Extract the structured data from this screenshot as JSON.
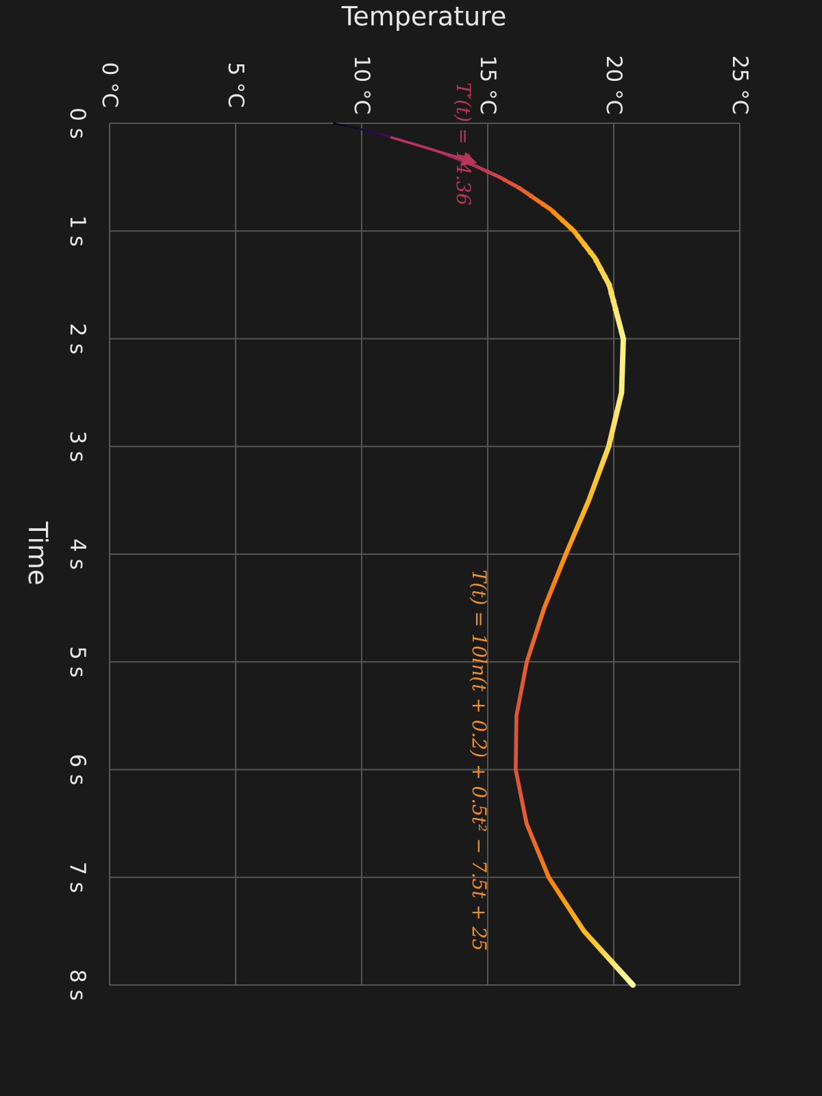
{
  "chart_data": {
    "type": "line",
    "orientation": "rotated 90 degrees clockwise",
    "x_axis": {
      "label": "Time",
      "range": [
        0,
        8
      ],
      "unit": "s",
      "ticks": [
        "0 s",
        "1 s",
        "2 s",
        "3 s",
        "4 s",
        "5 s",
        "6 s",
        "7 s",
        "8 s"
      ]
    },
    "y_axis": {
      "label": "Temperature",
      "range": [
        0,
        25
      ],
      "unit": "°C",
      "ticks": [
        "0 °C",
        "5 °C",
        "10 °C",
        "15 °C",
        "20 °C",
        "25 °C"
      ]
    },
    "grid": true,
    "colormap": "inferno",
    "series": [
      {
        "name": "T(t) = 10 ln(t + 0.2) + 0.5t² − 7.5t + 25",
        "x": [
          0,
          0.05,
          0.1,
          0.15,
          0.2,
          0.25,
          0.3,
          0.4,
          0.5,
          0.6,
          0.8,
          1.0,
          1.25,
          1.5,
          2.0,
          2.5,
          3.0,
          3.5,
          4.0,
          4.5,
          5.0,
          5.5,
          6.0,
          6.5,
          7.0,
          7.5,
          8.0
        ],
        "y": [
          8.91,
          9.88,
          10.74,
          11.52,
          12.23,
          12.88,
          13.48,
          14.55,
          15.47,
          16.25,
          17.5,
          18.42,
          19.25,
          19.82,
          20.38,
          20.31,
          19.8,
          19.01,
          18.1,
          17.24,
          16.55,
          16.14,
          16.11,
          16.54,
          17.42,
          18.82,
          20.76
        ],
        "color_low": "#000004",
        "color_high": "#fcffa4"
      }
    ],
    "annotations": [
      {
        "text": "T(t) = 10ln(t + 0.2) + 0.5t² − 7.5t + 25",
        "color": "#f0902a"
      },
      {
        "text": "T′(t) = 14.36",
        "color": "#b8365a",
        "tangent_at_t": 0.25,
        "tangent_value": 12.88,
        "slope": 14.36
      }
    ]
  }
}
